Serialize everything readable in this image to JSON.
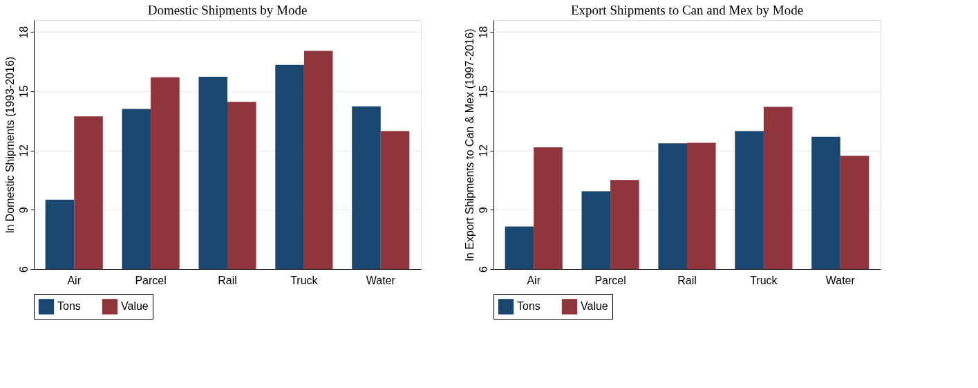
{
  "chart_data": [
    {
      "type": "bar",
      "title": "Domestic Shipments by Mode",
      "ylabel": "ln Domestic Shipments (1993-2016)",
      "categories": [
        "Air",
        "Parcel",
        "Rail",
        "Truck",
        "Water"
      ],
      "series": [
        {
          "name": "Tons",
          "color": "#1a476f",
          "values": [
            9.51,
            14.1,
            15.73,
            16.33,
            14.23
          ]
        },
        {
          "name": "Value",
          "color": "#90353b",
          "values": [
            13.73,
            15.7,
            14.46,
            17.04,
            12.98
          ]
        }
      ],
      "ylim": [
        6,
        18.6
      ],
      "yticks": [
        6,
        9,
        12,
        15,
        18
      ],
      "grid": "y",
      "legend": "bottom"
    },
    {
      "type": "bar",
      "title": "Export Shipments to Can and Mex by Mode",
      "ylabel": "ln Export Shipments to Can & Mex (1997-2016)",
      "categories": [
        "Air",
        "Parcel",
        "Rail",
        "Truck",
        "Water"
      ],
      "series": [
        {
          "name": "Tons",
          "color": "#1a476f",
          "values": [
            8.15,
            9.94,
            12.36,
            12.98,
            12.69
          ]
        },
        {
          "name": "Value",
          "color": "#90353b",
          "values": [
            12.16,
            10.51,
            12.39,
            14.21,
            11.73
          ]
        }
      ],
      "ylim": [
        6,
        18.6
      ],
      "yticks": [
        6,
        9,
        12,
        15,
        18
      ],
      "grid": "y",
      "legend": "bottom"
    }
  ]
}
